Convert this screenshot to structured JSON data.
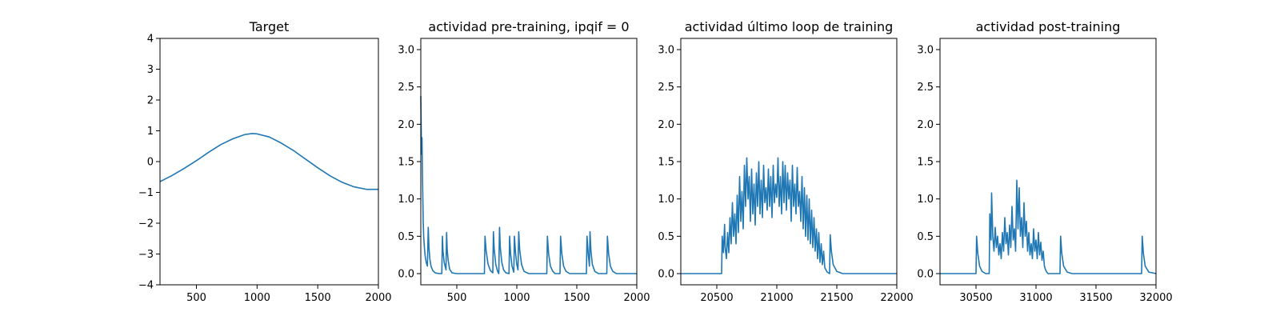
{
  "line_color": "#1f77b4",
  "chart_data": [
    {
      "type": "line",
      "title": "Target",
      "xlim": [
        200,
        2000
      ],
      "ylim": [
        -4,
        4
      ],
      "xticks": [
        500,
        1000,
        1500,
        2000
      ],
      "yticks": [
        -4,
        -3,
        -2,
        -1,
        0,
        1,
        2,
        3,
        4
      ],
      "series": [
        {
          "x": [
            200,
            300,
            400,
            500,
            600,
            700,
            800,
            900,
            960,
            1000,
            1100,
            1200,
            1300,
            1400,
            1500,
            1600,
            1700,
            1800,
            1900,
            2000
          ],
          "y": [
            -0.65,
            -0.45,
            -0.22,
            0.03,
            0.3,
            0.55,
            0.74,
            0.88,
            0.91,
            0.9,
            0.8,
            0.6,
            0.36,
            0.08,
            -0.2,
            -0.46,
            -0.67,
            -0.82,
            -0.9,
            -0.9
          ]
        }
      ]
    },
    {
      "type": "line",
      "title": "actividad pre-training, ipqif = 0",
      "xlim": [
        200,
        2000
      ],
      "ylim": [
        -0.15,
        3.15
      ],
      "xticks": [
        500,
        1000,
        1500,
        2000
      ],
      "yticks": [
        0.0,
        0.5,
        1.0,
        1.5,
        2.0,
        2.5,
        3.0
      ],
      "ytick_labels": [
        "0.0",
        "0.5",
        "1.0",
        "1.5",
        "2.0",
        "2.5",
        "3.0"
      ],
      "series": [
        {
          "x": [
            200,
            203,
            206,
            210,
            214,
            217,
            220,
            224,
            230,
            236,
            245,
            255,
            262,
            268,
            275,
            285,
            300,
            320,
            350,
            375,
            380,
            385,
            395,
            410,
            415,
            420,
            428,
            440,
            460,
            500,
            600,
            730,
            735,
            745,
            760,
            780,
            800,
            805,
            812,
            825,
            840,
            850,
            856,
            862,
            875,
            890,
            910,
            935,
            940,
            948,
            960,
            975,
            980,
            990,
            1000,
            1010,
            1016,
            1024,
            1040,
            1060,
            1100,
            1200,
            1250,
            1255,
            1265,
            1280,
            1300,
            1320,
            1360,
            1365,
            1375,
            1390,
            1410,
            1440,
            1500,
            1580,
            1585,
            1595,
            1605,
            1610,
            1618,
            1630,
            1650,
            1680,
            1750,
            1755,
            1765,
            1780,
            1800,
            1830,
            1900,
            2000
          ],
          "y": [
            2.38,
            2.0,
            1.6,
            1.82,
            1.3,
            1.0,
            0.7,
            0.5,
            0.35,
            0.24,
            0.15,
            0.1,
            0.62,
            0.35,
            0.2,
            0.1,
            0.04,
            0.01,
            0.0,
            0.0,
            0.5,
            0.3,
            0.15,
            0.05,
            0.55,
            0.32,
            0.18,
            0.06,
            0.01,
            0.0,
            0.0,
            0.0,
            0.5,
            0.3,
            0.13,
            0.04,
            0.01,
            0.56,
            0.32,
            0.12,
            0.03,
            0.0,
            0.62,
            0.36,
            0.15,
            0.05,
            0.01,
            0.0,
            0.5,
            0.27,
            0.1,
            0.02,
            0.5,
            0.27,
            0.12,
            0.05,
            0.56,
            0.32,
            0.12,
            0.03,
            0.0,
            0.0,
            0.0,
            0.5,
            0.27,
            0.1,
            0.03,
            0.0,
            0.0,
            0.5,
            0.27,
            0.1,
            0.03,
            0.0,
            0.0,
            0.0,
            0.5,
            0.27,
            0.1,
            0.56,
            0.3,
            0.12,
            0.03,
            0.0,
            0.0,
            0.5,
            0.27,
            0.1,
            0.03,
            0.0,
            0.0,
            0.0
          ]
        }
      ]
    },
    {
      "type": "line",
      "title": "actividad último loop de training",
      "xlim": [
        20200,
        22000
      ],
      "ylim": [
        -0.15,
        3.15
      ],
      "xticks": [
        20500,
        21000,
        21500,
        22000
      ],
      "yticks": [
        0.0,
        0.5,
        1.0,
        1.5,
        2.0,
        2.5,
        3.0
      ],
      "ytick_labels": [
        "0.0",
        "0.5",
        "1.0",
        "1.5",
        "2.0",
        "2.5",
        "3.0"
      ],
      "series": [
        {
          "x": [
            20200,
            20400,
            20540,
            20545,
            20555,
            20565,
            20570,
            20580,
            20590,
            20600,
            20610,
            20620,
            20630,
            20640,
            20650,
            20660,
            20670,
            20680,
            20690,
            20700,
            20710,
            20720,
            20730,
            20740,
            20750,
            20760,
            20770,
            20780,
            20790,
            20800,
            20810,
            20820,
            20830,
            20840,
            20850,
            20860,
            20870,
            20880,
            20890,
            20900,
            20910,
            20920,
            20930,
            20940,
            20950,
            20960,
            20970,
            20980,
            20990,
            21000,
            21010,
            21020,
            21030,
            21040,
            21050,
            21060,
            21070,
            21080,
            21090,
            21100,
            21110,
            21120,
            21130,
            21140,
            21150,
            21160,
            21170,
            21180,
            21190,
            21200,
            21210,
            21220,
            21230,
            21240,
            21250,
            21260,
            21270,
            21280,
            21290,
            21300,
            21310,
            21320,
            21330,
            21340,
            21350,
            21360,
            21370,
            21380,
            21390,
            21400,
            21410,
            21420,
            21440,
            21445,
            21455,
            21470,
            21500,
            21550,
            21700,
            22000
          ],
          "y": [
            0.0,
            0.0,
            0.0,
            0.5,
            0.28,
            0.66,
            0.35,
            0.2,
            0.55,
            0.28,
            0.75,
            0.4,
            0.95,
            0.5,
            0.8,
            0.4,
            1.05,
            0.55,
            1.3,
            0.7,
            1.1,
            0.6,
            1.45,
            0.9,
            1.55,
            1.0,
            1.3,
            0.7,
            1.4,
            0.8,
            1.2,
            0.65,
            1.35,
            0.9,
            1.5,
            0.8,
            1.25,
            0.75,
            1.45,
            0.95,
            1.15,
            0.85,
            1.4,
            0.9,
            1.3,
            0.75,
            1.45,
            0.95,
            1.2,
            1.02,
            1.55,
            0.9,
            1.3,
            0.8,
            1.5,
            0.95,
            1.45,
            0.85,
            1.35,
            1.0,
            1.25,
            0.7,
            1.45,
            0.9,
            1.2,
            0.8,
            1.42,
            0.9,
            1.1,
            0.7,
            1.3,
            0.6,
            1.15,
            0.5,
            1.05,
            0.45,
            1.0,
            0.4,
            0.85,
            0.35,
            0.75,
            0.3,
            0.6,
            0.2,
            0.55,
            0.15,
            0.4,
            0.12,
            0.3,
            0.08,
            0.05,
            0.02,
            0.0,
            0.52,
            0.3,
            0.12,
            0.03,
            0.0,
            0.0,
            0.0
          ]
        }
      ]
    },
    {
      "type": "line",
      "title": "actividad post-training",
      "xlim": [
        30200,
        32000
      ],
      "ylim": [
        -0.15,
        3.15
      ],
      "xticks": [
        30500,
        31000,
        31500,
        32000
      ],
      "yticks": [
        0.0,
        0.5,
        1.0,
        1.5,
        2.0,
        2.5,
        3.0
      ],
      "ytick_labels": [
        "0.0",
        "0.5",
        "1.0",
        "1.5",
        "2.0",
        "2.5",
        "3.0"
      ],
      "series": [
        {
          "x": [
            30200,
            30400,
            30500,
            30505,
            30515,
            30530,
            30550,
            30580,
            30610,
            30615,
            30625,
            30630,
            30640,
            30650,
            30660,
            30670,
            30680,
            30690,
            30700,
            30710,
            30720,
            30730,
            30740,
            30750,
            30760,
            30770,
            30780,
            30790,
            30800,
            30810,
            30820,
            30830,
            30840,
            30850,
            30860,
            30870,
            30880,
            30890,
            30900,
            30910,
            30920,
            30930,
            30940,
            30950,
            30960,
            30970,
            30980,
            30990,
            31000,
            31010,
            31020,
            31030,
            31040,
            31050,
            31060,
            31070,
            31080,
            31090,
            31100,
            31120,
            31140,
            31160,
            31200,
            31205,
            31215,
            31230,
            31260,
            31300,
            31500,
            31880,
            31885,
            31895,
            31910,
            31940,
            32000
          ],
          "y": [
            0.0,
            0.0,
            0.0,
            0.5,
            0.27,
            0.1,
            0.03,
            0.0,
            0.0,
            0.8,
            0.45,
            1.08,
            0.5,
            0.3,
            0.62,
            0.35,
            0.5,
            0.25,
            0.4,
            0.2,
            0.55,
            0.3,
            0.75,
            0.4,
            0.55,
            0.25,
            0.65,
            0.35,
            0.9,
            0.45,
            0.6,
            0.3,
            1.25,
            0.6,
            1.15,
            0.5,
            0.75,
            0.35,
            0.95,
            0.5,
            0.7,
            0.3,
            0.55,
            0.25,
            0.4,
            0.2,
            0.6,
            0.3,
            0.45,
            0.2,
            0.55,
            0.25,
            0.42,
            0.18,
            0.3,
            0.1,
            0.05,
            0.02,
            0.0,
            0.0,
            0.0,
            0.0,
            0.0,
            0.5,
            0.27,
            0.1,
            0.02,
            0.0,
            0.0,
            0.0,
            0.5,
            0.27,
            0.1,
            0.02,
            0.0
          ]
        }
      ]
    }
  ]
}
